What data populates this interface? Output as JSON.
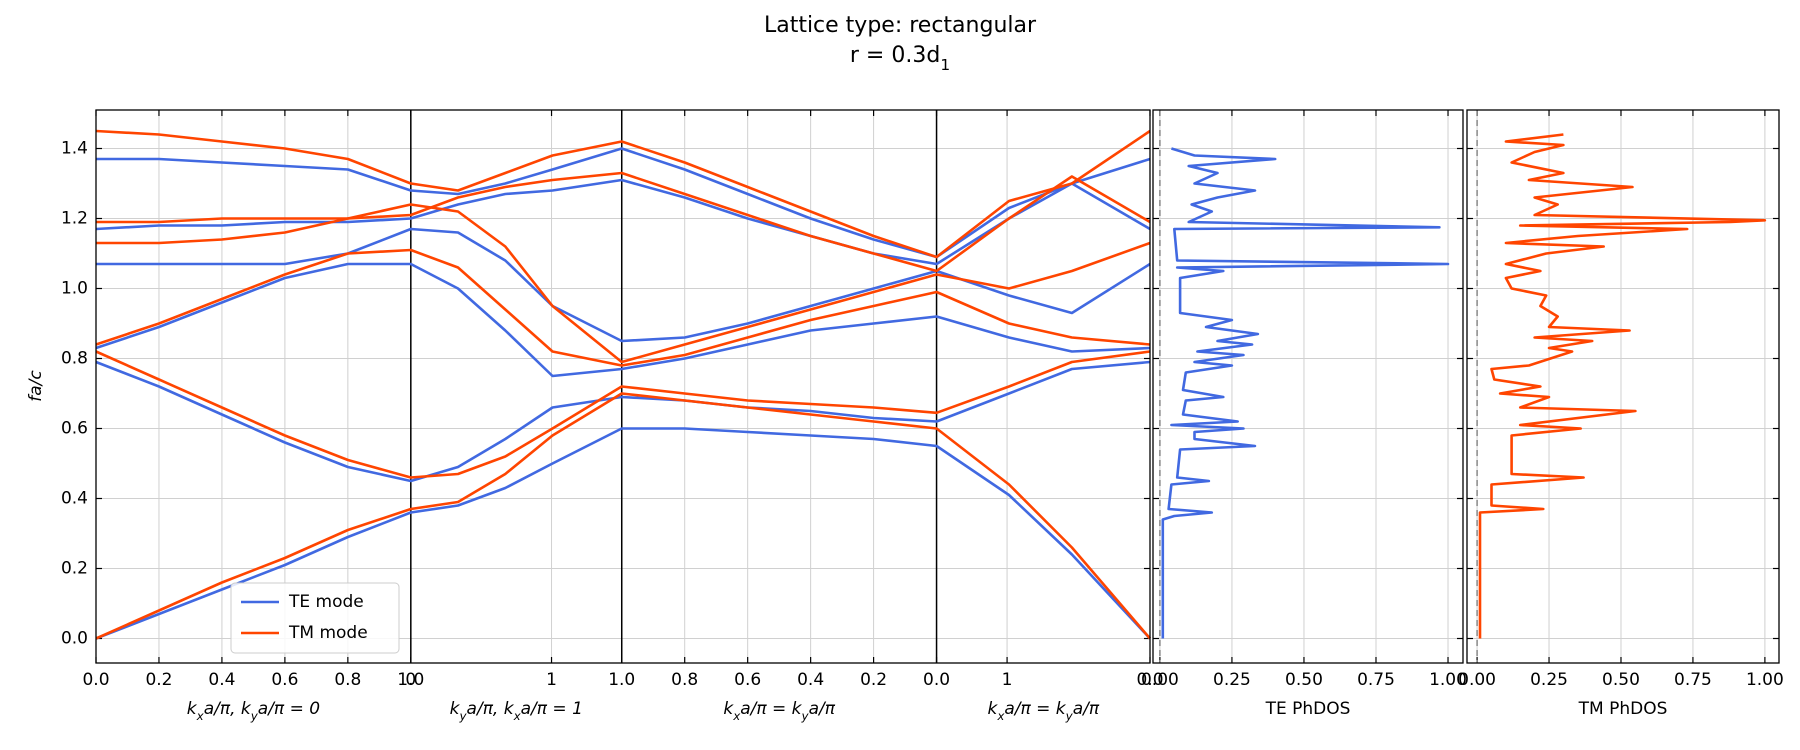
{
  "chart_data": [
    {
      "type": "line",
      "title": "Lattice type: rectangular",
      "subtitle": "r = 0.3d_1",
      "ylabel": "fa/c",
      "xlabels": [
        "k_xa/π, k_ya/π = 0",
        "k_ya/π, k_xa/π = 1",
        "k_xa/π = k_ya/π",
        "k_xa/π = k_ya/π"
      ],
      "separators": [
        1.0,
        1.67,
        2.67
      ],
      "xlim": [
        0,
        3.348
      ],
      "ylim": [
        -0.07,
        1.51
      ],
      "xticks": [
        {
          "value": 0,
          "label": "0.0"
        },
        0.2,
        0.4,
        0.6,
        0.8,
        {
          "value": 1.0,
          "label": "1.0"
        },
        {
          "value": 1.0,
          "label": "0"
        },
        {
          "value": 1.447,
          "label": "1"
        },
        {
          "value": 1.67,
          "label": "1.0"
        },
        {
          "value": 1.87,
          "label": "0.8"
        },
        {
          "value": 2.07,
          "label": "0.6"
        },
        {
          "value": 2.27,
          "label": "0.4"
        },
        {
          "value": 2.47,
          "label": "0.2"
        },
        {
          "value": 2.67,
          "label": "0.0"
        },
        {
          "value": 2.894,
          "label": "1"
        },
        {
          "value": 3.348,
          "label": "0.0"
        }
      ],
      "yticks": [
        {
          "value": 0,
          "label": "0.0"
        },
        0.2,
        0.4,
        0.6,
        0.8,
        {
          "value": 1.0,
          "label": "1.0"
        },
        1.2,
        1.4
      ],
      "grid": true,
      "legend": "lower left",
      "x": [
        0,
        0.2,
        0.4,
        0.6,
        0.8,
        1.0,
        1.15,
        1.3,
        1.45,
        1.67,
        1.87,
        2.07,
        2.27,
        2.47,
        2.67,
        2.9,
        3.1,
        3.348
      ],
      "series": [
        {
          "name": "TE mode",
          "color": "#4169e1",
          "bands": [
            [
              0,
              0.07,
              0.14,
              0.21,
              0.29,
              0.36,
              0.38,
              0.43,
              0.5,
              0.6,
              0.6,
              0.59,
              0.58,
              0.57,
              0.55,
              0.41,
              0.24,
              0
            ],
            [
              0.79,
              0.72,
              0.64,
              0.56,
              0.49,
              0.45,
              0.49,
              0.57,
              0.66,
              0.69,
              0.68,
              0.66,
              0.65,
              0.63,
              0.62,
              0.7,
              0.77,
              0.79
            ],
            [
              0.83,
              0.89,
              0.96,
              1.03,
              1.07,
              1.07,
              1.0,
              0.88,
              0.75,
              0.77,
              0.8,
              0.84,
              0.88,
              0.9,
              0.92,
              0.86,
              0.82,
              0.83
            ],
            [
              1.07,
              1.07,
              1.07,
              1.07,
              1.1,
              1.17,
              1.16,
              1.08,
              0.95,
              0.85,
              0.86,
              0.9,
              0.95,
              1.0,
              1.05,
              0.98,
              0.93,
              1.07
            ],
            [
              1.17,
              1.18,
              1.18,
              1.19,
              1.19,
              1.2,
              1.24,
              1.27,
              1.28,
              1.31,
              1.26,
              1.2,
              1.15,
              1.1,
              1.07,
              1.2,
              1.3,
              1.17
            ],
            [
              1.37,
              1.37,
              1.36,
              1.35,
              1.34,
              1.28,
              1.27,
              1.3,
              1.34,
              1.4,
              1.34,
              1.27,
              1.2,
              1.14,
              1.09,
              1.23,
              1.3,
              1.37
            ]
          ]
        },
        {
          "name": "TM mode",
          "color": "#ff4500",
          "bands": [
            [
              0,
              0.08,
              0.16,
              0.23,
              0.31,
              0.37,
              0.39,
              0.47,
              0.58,
              0.7,
              0.68,
              0.66,
              0.64,
              0.62,
              0.6,
              0.44,
              0.26,
              0
            ],
            [
              0.82,
              0.74,
              0.66,
              0.58,
              0.51,
              0.46,
              0.47,
              0.52,
              0.6,
              0.72,
              0.7,
              0.68,
              0.67,
              0.66,
              0.645,
              0.72,
              0.79,
              0.82
            ],
            [
              0.84,
              0.9,
              0.97,
              1.04,
              1.1,
              1.11,
              1.06,
              0.94,
              0.82,
              0.78,
              0.81,
              0.86,
              0.91,
              0.95,
              0.99,
              0.9,
              0.86,
              0.84
            ],
            [
              1.13,
              1.13,
              1.14,
              1.16,
              1.2,
              1.24,
              1.22,
              1.12,
              0.95,
              0.79,
              0.84,
              0.89,
              0.94,
              0.99,
              1.04,
              1.0,
              1.05,
              1.13
            ],
            [
              1.19,
              1.19,
              1.2,
              1.2,
              1.2,
              1.21,
              1.26,
              1.29,
              1.31,
              1.33,
              1.27,
              1.21,
              1.15,
              1.1,
              1.05,
              1.2,
              1.32,
              1.19
            ],
            [
              1.45,
              1.44,
              1.42,
              1.4,
              1.37,
              1.3,
              1.28,
              1.33,
              1.38,
              1.42,
              1.36,
              1.29,
              1.22,
              1.15,
              1.09,
              1.25,
              1.3,
              1.45
            ]
          ]
        }
      ]
    },
    {
      "type": "dos",
      "xlabel": "TE PhDOS",
      "xlim": [
        -0.024,
        1.052
      ],
      "ylim": [
        -0.07,
        1.51
      ],
      "xticks": [
        {
          "value": 0,
          "label": "0.00"
        },
        0.25,
        {
          "value": 0.5,
          "label": "0.50"
        },
        0.75,
        {
          "value": 1,
          "label": "1.00"
        }
      ],
      "yticks": [
        0,
        0.2,
        0.4,
        0.6,
        0.8,
        1.0,
        1.2,
        1.4
      ],
      "grid": true,
      "dashed_x": 0,
      "series": [
        {
          "color": "#4169e1",
          "y": [
            0.0,
            0.34,
            0.35,
            0.36,
            0.37,
            0.44,
            0.45,
            0.46,
            0.54,
            0.55,
            0.57,
            0.59,
            0.6,
            0.61,
            0.62,
            0.64,
            0.68,
            0.69,
            0.71,
            0.76,
            0.78,
            0.79,
            0.81,
            0.82,
            0.84,
            0.85,
            0.87,
            0.89,
            0.91,
            0.93,
            1.03,
            1.05,
            1.06,
            1.07,
            1.08,
            1.17,
            1.175,
            1.19,
            1.22,
            1.24,
            1.26,
            1.28,
            1.3,
            1.33,
            1.35,
            1.37,
            1.38,
            1.4
          ],
          "values": [
            0.01,
            0.01,
            0.05,
            0.18,
            0.03,
            0.04,
            0.17,
            0.06,
            0.07,
            0.33,
            0.12,
            0.12,
            0.29,
            0.04,
            0.27,
            0.08,
            0.09,
            0.22,
            0.08,
            0.09,
            0.25,
            0.12,
            0.29,
            0.13,
            0.32,
            0.2,
            0.34,
            0.16,
            0.25,
            0.07,
            0.07,
            0.22,
            0.06,
            1.0,
            0.06,
            0.05,
            0.97,
            0.1,
            0.18,
            0.11,
            0.2,
            0.33,
            0.12,
            0.2,
            0.1,
            0.4,
            0.12,
            0.04
          ]
        }
      ]
    },
    {
      "type": "dos",
      "xlabel": "TM PhDOS",
      "xlim": [
        -0.035,
        1.049
      ],
      "ylim": [
        -0.07,
        1.51
      ],
      "xticks": [
        {
          "value": 0,
          "label": "0.00"
        },
        0.25,
        {
          "value": 0.5,
          "label": "0.50"
        },
        0.75,
        {
          "value": 1,
          "label": "1.00"
        }
      ],
      "yticks": [
        0,
        0.2,
        0.4,
        0.6,
        0.8,
        1.0,
        1.2,
        1.4
      ],
      "grid": true,
      "dashed_x": 0,
      "series": [
        {
          "color": "#ff4500",
          "y": [
            0.0,
            0.36,
            0.37,
            0.38,
            0.44,
            0.46,
            0.47,
            0.58,
            0.6,
            0.61,
            0.65,
            0.66,
            0.69,
            0.7,
            0.72,
            0.74,
            0.77,
            0.78,
            0.82,
            0.83,
            0.85,
            0.86,
            0.88,
            0.89,
            0.92,
            0.95,
            0.98,
            1.0,
            1.03,
            1.05,
            1.07,
            1.1,
            1.12,
            1.13,
            1.15,
            1.17,
            1.18,
            1.19,
            1.195,
            1.21,
            1.24,
            1.26,
            1.29,
            1.31,
            1.33,
            1.36,
            1.39,
            1.41,
            1.42,
            1.44
          ],
          "values": [
            0.01,
            0.01,
            0.23,
            0.05,
            0.05,
            0.37,
            0.12,
            0.12,
            0.36,
            0.15,
            0.55,
            0.15,
            0.25,
            0.08,
            0.22,
            0.06,
            0.05,
            0.18,
            0.33,
            0.25,
            0.4,
            0.2,
            0.53,
            0.25,
            0.28,
            0.22,
            0.24,
            0.12,
            0.1,
            0.22,
            0.1,
            0.24,
            0.44,
            0.1,
            0.35,
            0.73,
            0.15,
            0.88,
            1.0,
            0.2,
            0.28,
            0.2,
            0.54,
            0.18,
            0.3,
            0.12,
            0.2,
            0.3,
            0.1,
            0.3
          ]
        }
      ]
    }
  ]
}
